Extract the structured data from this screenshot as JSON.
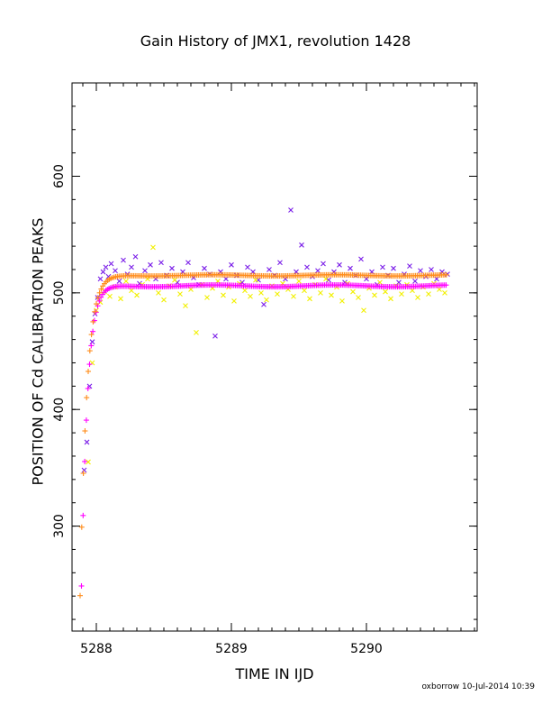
{
  "chart_data": {
    "type": "scatter",
    "title": "Gain History of JMX1, revolution 1428",
    "xlabel": "TIME IN IJD",
    "ylabel": "POSITION OF Cd CALIBRATION PEAKS",
    "xlim": [
      5287.82,
      5290.82
    ],
    "ylim": [
      210,
      680
    ],
    "xticks": [
      5288,
      5289,
      5290
    ],
    "yticks": [
      300,
      400,
      500,
      600
    ],
    "grid": false,
    "colors": {
      "purple": "#7a1ee8",
      "yellow": "#f2f000",
      "magenta": "#ff00ff",
      "orange": "#ff8c1a"
    },
    "series": [
      {
        "marker": "x",
        "color": "#7a1ee8",
        "points": [
          [
            5287.91,
            348
          ],
          [
            5287.93,
            372
          ],
          [
            5287.95,
            420
          ],
          [
            5287.97,
            458
          ],
          [
            5287.99,
            482
          ],
          [
            5288.01,
            496
          ],
          [
            5288.03,
            512
          ],
          [
            5288.05,
            518
          ],
          [
            5288.07,
            522
          ],
          [
            5288.09,
            514
          ],
          [
            5288.11,
            525
          ],
          [
            5288.14,
            519
          ],
          [
            5288.17,
            510
          ],
          [
            5288.2,
            528
          ],
          [
            5288.23,
            516
          ],
          [
            5288.26,
            522
          ],
          [
            5288.29,
            531
          ],
          [
            5288.32,
            508
          ],
          [
            5288.36,
            519
          ],
          [
            5288.4,
            524
          ],
          [
            5288.44,
            512
          ],
          [
            5288.48,
            526
          ],
          [
            5288.52,
            515
          ],
          [
            5288.56,
            521
          ],
          [
            5288.6,
            509
          ],
          [
            5288.64,
            518
          ],
          [
            5288.68,
            526
          ],
          [
            5288.72,
            513
          ],
          [
            5288.76,
            507
          ],
          [
            5288.8,
            521
          ],
          [
            5288.84,
            516
          ],
          [
            5288.88,
            463
          ],
          [
            5288.92,
            518
          ],
          [
            5288.96,
            512
          ],
          [
            5289.0,
            524
          ],
          [
            5289.04,
            515
          ],
          [
            5289.08,
            509
          ],
          [
            5289.12,
            522
          ],
          [
            5289.16,
            518
          ],
          [
            5289.2,
            511
          ],
          [
            5289.24,
            490
          ],
          [
            5289.28,
            520
          ],
          [
            5289.32,
            515
          ],
          [
            5289.36,
            526
          ],
          [
            5289.4,
            512
          ],
          [
            5289.44,
            571
          ],
          [
            5289.48,
            518
          ],
          [
            5289.52,
            541
          ],
          [
            5289.56,
            522
          ],
          [
            5289.6,
            514
          ],
          [
            5289.64,
            519
          ],
          [
            5289.68,
            525
          ],
          [
            5289.72,
            511
          ],
          [
            5289.76,
            518
          ],
          [
            5289.8,
            524
          ],
          [
            5289.84,
            509
          ],
          [
            5289.88,
            521
          ],
          [
            5289.92,
            515
          ],
          [
            5289.96,
            529
          ],
          [
            5290.0,
            512
          ],
          [
            5290.04,
            518
          ],
          [
            5290.08,
            507
          ],
          [
            5290.12,
            522
          ],
          [
            5290.16,
            515
          ],
          [
            5290.2,
            521
          ],
          [
            5290.24,
            509
          ],
          [
            5290.28,
            516
          ],
          [
            5290.32,
            523
          ],
          [
            5290.36,
            510
          ],
          [
            5290.4,
            519
          ],
          [
            5290.44,
            514
          ],
          [
            5290.48,
            520
          ],
          [
            5290.52,
            512
          ],
          [
            5290.56,
            518
          ],
          [
            5290.6,
            516
          ]
        ]
      },
      {
        "marker": "x",
        "color": "#f2f000",
        "points": [
          [
            5287.94,
            355
          ],
          [
            5287.97,
            440
          ],
          [
            5288.0,
            485
          ],
          [
            5288.03,
            492
          ],
          [
            5288.06,
            501
          ],
          [
            5288.1,
            497
          ],
          [
            5288.14,
            505
          ],
          [
            5288.18,
            495
          ],
          [
            5288.22,
            510
          ],
          [
            5288.26,
            502
          ],
          [
            5288.3,
            498
          ],
          [
            5288.34,
            507
          ],
          [
            5288.38,
            512
          ],
          [
            5288.42,
            539
          ],
          [
            5288.46,
            500
          ],
          [
            5288.5,
            494
          ],
          [
            5288.54,
            506
          ],
          [
            5288.58,
            511
          ],
          [
            5288.62,
            499
          ],
          [
            5288.66,
            489
          ],
          [
            5288.7,
            503
          ],
          [
            5288.74,
            466
          ],
          [
            5288.78,
            507
          ],
          [
            5288.82,
            496
          ],
          [
            5288.86,
            504
          ],
          [
            5288.9,
            510
          ],
          [
            5288.94,
            498
          ],
          [
            5288.98,
            505
          ],
          [
            5289.02,
            493
          ],
          [
            5289.06,
            508
          ],
          [
            5289.1,
            502
          ],
          [
            5289.14,
            497
          ],
          [
            5289.18,
            511
          ],
          [
            5289.22,
            500
          ],
          [
            5289.26,
            494
          ],
          [
            5289.3,
            506
          ],
          [
            5289.34,
            499
          ],
          [
            5289.38,
            508
          ],
          [
            5289.42,
            503
          ],
          [
            5289.46,
            497
          ],
          [
            5289.5,
            510
          ],
          [
            5289.54,
            502
          ],
          [
            5289.58,
            495
          ],
          [
            5289.62,
            507
          ],
          [
            5289.66,
            500
          ],
          [
            5289.7,
            512
          ],
          [
            5289.74,
            498
          ],
          [
            5289.78,
            505
          ],
          [
            5289.82,
            493
          ],
          [
            5289.86,
            508
          ],
          [
            5289.9,
            501
          ],
          [
            5289.94,
            496
          ],
          [
            5289.98,
            485
          ],
          [
            5290.02,
            504
          ],
          [
            5290.06,
            498
          ],
          [
            5290.1,
            509
          ],
          [
            5290.14,
            501
          ],
          [
            5290.18,
            495
          ],
          [
            5290.22,
            506
          ],
          [
            5290.26,
            499
          ],
          [
            5290.3,
            507
          ],
          [
            5290.34,
            502
          ],
          [
            5290.38,
            496
          ],
          [
            5290.42,
            505
          ],
          [
            5290.46,
            499
          ],
          [
            5290.5,
            508
          ],
          [
            5290.54,
            503
          ],
          [
            5290.58,
            500
          ]
        ]
      },
      {
        "marker": "+",
        "color": "#ff00ff",
        "curve": {
          "start": 5287.89,
          "end": 5290.6,
          "step": 0.012,
          "y0": 248,
          "plateau": 506,
          "tau": 0.045,
          "drift": 0.8
        }
      },
      {
        "marker": "+",
        "color": "#ff8c1a",
        "curve": {
          "start": 5287.88,
          "end": 5290.6,
          "step": 0.012,
          "y0": 240,
          "plateau": 515,
          "tau": 0.05,
          "drift": 0.5
        }
      }
    ]
  },
  "footer": "oxborrow 10-Jul-2014 10:39"
}
